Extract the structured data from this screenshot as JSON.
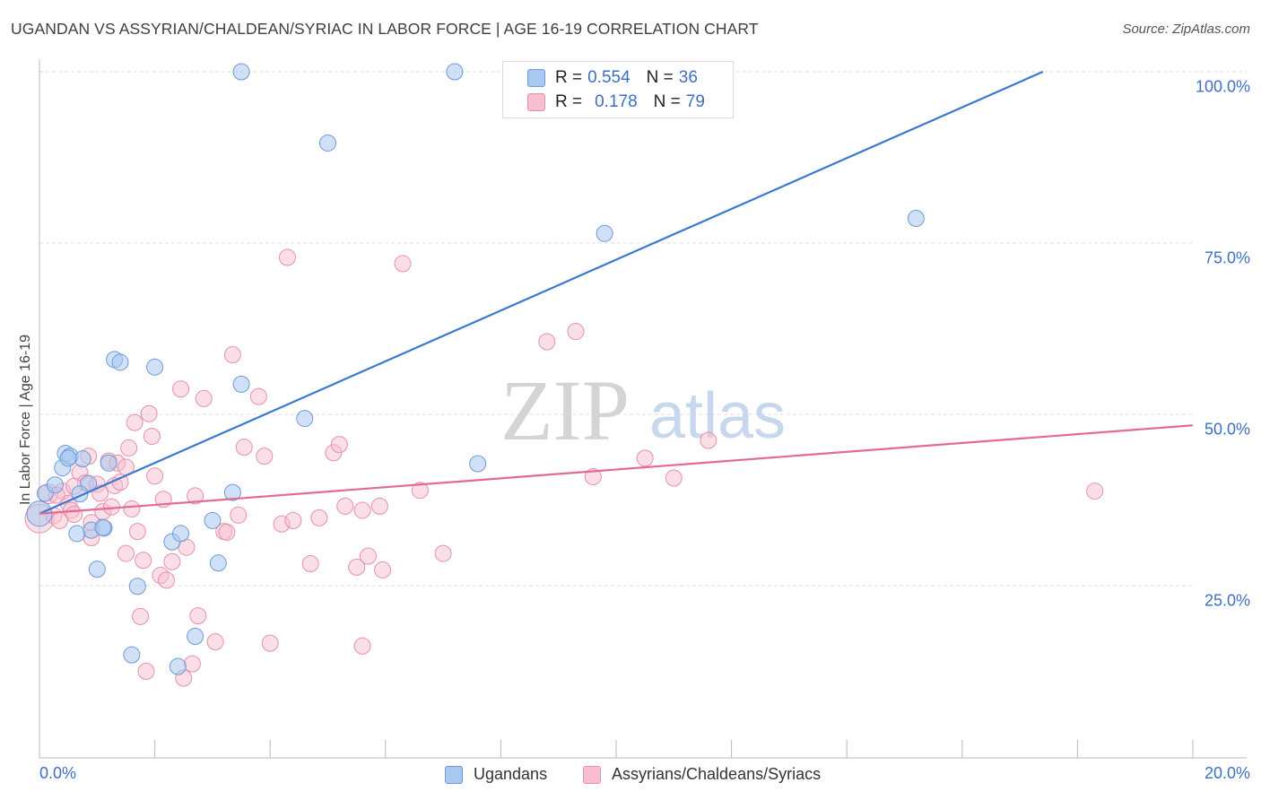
{
  "title": "UGANDAN VS ASSYRIAN/CHALDEAN/SYRIAC IN LABOR FORCE | AGE 16-19 CORRELATION CHART",
  "source": "Source: ZipAtlas.com",
  "watermark": {
    "zip": "ZIP",
    "atlas": "atlas"
  },
  "legend_top": {
    "rows": [
      {
        "r_label": "R = ",
        "r_value": "0.554",
        "n_label": "N = ",
        "n_value": "36"
      },
      {
        "r_label": "R = ",
        "r_value": "0.178",
        "n_label": "N = ",
        "n_value": "79"
      }
    ]
  },
  "legend_bottom": {
    "items": [
      "Ugandans",
      "Assyrians/Chaldeans/Syriacs"
    ]
  },
  "chart_data": {
    "type": "scatter",
    "title": "UGANDAN VS ASSYRIAN/CHALDEAN/SYRIAC IN LABOR FORCE | AGE 16-19 CORRELATION CHART",
    "xlabel": "",
    "ylabel": "In Labor Force | Age 16-19",
    "xlim": [
      0,
      20
    ],
    "ylim": [
      0,
      102
    ],
    "x_tick_labels": [
      "0.0%",
      "20.0%"
    ],
    "y_ticks": [
      25,
      50,
      75,
      100
    ],
    "y_tick_labels": [
      "25.0%",
      "50.0%",
      "75.0%",
      "100.0%"
    ],
    "grid": true,
    "legend_position": "top-center",
    "colors": {
      "ugandans_fill": "#a9c8f0",
      "ugandans_stroke": "#6d9ad8",
      "ugandans_line": "#3a78d0",
      "assyrians_fill": "#f6bfd0",
      "assyrians_stroke": "#e98fab",
      "assyrians_line": "#e36a93",
      "grid": "#dddddd",
      "axis": "#bbbbbb"
    },
    "series": [
      {
        "name": "Ugandans",
        "r": 0.554,
        "n": 36,
        "trend": {
          "x0": 0,
          "y0": 35.5,
          "x1": 17.4,
          "y1": 100
        },
        "points": [
          {
            "x": 0.0,
            "y": 35.5,
            "s": 14
          },
          {
            "x": 0.1,
            "y": 38.5,
            "s": 9
          },
          {
            "x": 0.27,
            "y": 39.7,
            "s": 9
          },
          {
            "x": 0.4,
            "y": 42.2,
            "s": 9
          },
          {
            "x": 0.45,
            "y": 44.3,
            "s": 9
          },
          {
            "x": 0.53,
            "y": 43.9,
            "s": 9
          },
          {
            "x": 0.75,
            "y": 43.5,
            "s": 9
          },
          {
            "x": 0.65,
            "y": 32.6,
            "s": 9
          },
          {
            "x": 0.85,
            "y": 39.9,
            "s": 9
          },
          {
            "x": 0.9,
            "y": 33.1,
            "s": 9
          },
          {
            "x": 1.0,
            "y": 27.4,
            "s": 9
          },
          {
            "x": 1.12,
            "y": 33.4,
            "s": 9
          },
          {
            "x": 1.2,
            "y": 42.9,
            "s": 9
          },
          {
            "x": 1.3,
            "y": 58.0,
            "s": 9
          },
          {
            "x": 1.4,
            "y": 57.6,
            "s": 9
          },
          {
            "x": 1.6,
            "y": 14.9,
            "s": 9
          },
          {
            "x": 1.7,
            "y": 24.9,
            "s": 9
          },
          {
            "x": 2.0,
            "y": 56.9,
            "s": 9
          },
          {
            "x": 2.3,
            "y": 31.4,
            "s": 9
          },
          {
            "x": 2.4,
            "y": 13.2,
            "s": 9
          },
          {
            "x": 2.45,
            "y": 32.6,
            "s": 9
          },
          {
            "x": 2.7,
            "y": 17.6,
            "s": 9
          },
          {
            "x": 3.0,
            "y": 34.5,
            "s": 9
          },
          {
            "x": 3.1,
            "y": 28.3,
            "s": 9
          },
          {
            "x": 3.35,
            "y": 38.6,
            "s": 9
          },
          {
            "x": 3.5,
            "y": 54.4,
            "s": 9
          },
          {
            "x": 3.5,
            "y": 100.0,
            "s": 9
          },
          {
            "x": 4.6,
            "y": 49.4,
            "s": 9
          },
          {
            "x": 5.0,
            "y": 89.6,
            "s": 9
          },
          {
            "x": 7.2,
            "y": 100.0,
            "s": 9
          },
          {
            "x": 7.6,
            "y": 42.8,
            "s": 9
          },
          {
            "x": 9.8,
            "y": 76.4,
            "s": 9
          },
          {
            "x": 15.2,
            "y": 78.6,
            "s": 9
          },
          {
            "x": 1.1,
            "y": 33.5,
            "s": 9
          },
          {
            "x": 0.7,
            "y": 38.4,
            "s": 9
          },
          {
            "x": 0.5,
            "y": 43.6,
            "s": 9
          }
        ]
      },
      {
        "name": "Assyrians/Chaldeans/Syriacs",
        "r": 0.178,
        "n": 79,
        "trend": {
          "x0": 0,
          "y0": 35.5,
          "x1": 20,
          "y1": 48.4
        },
        "points": [
          {
            "x": 0.0,
            "y": 34.8,
            "s": 16
          },
          {
            "x": 0.15,
            "y": 38.4,
            "s": 11
          },
          {
            "x": 0.25,
            "y": 35.2,
            "s": 9
          },
          {
            "x": 0.35,
            "y": 34.5,
            "s": 9
          },
          {
            "x": 0.4,
            "y": 38.8,
            "s": 9
          },
          {
            "x": 0.5,
            "y": 37.0,
            "s": 9
          },
          {
            "x": 0.55,
            "y": 36.0,
            "s": 9
          },
          {
            "x": 0.6,
            "y": 35.4,
            "s": 9
          },
          {
            "x": 0.7,
            "y": 41.5,
            "s": 9
          },
          {
            "x": 0.8,
            "y": 40.0,
            "s": 9
          },
          {
            "x": 0.85,
            "y": 43.9,
            "s": 9
          },
          {
            "x": 0.9,
            "y": 34.2,
            "s": 9
          },
          {
            "x": 0.9,
            "y": 32.0,
            "s": 9
          },
          {
            "x": 1.0,
            "y": 39.8,
            "s": 9
          },
          {
            "x": 1.05,
            "y": 38.5,
            "s": 9
          },
          {
            "x": 1.1,
            "y": 35.8,
            "s": 9
          },
          {
            "x": 1.2,
            "y": 43.2,
            "s": 9
          },
          {
            "x": 1.25,
            "y": 36.5,
            "s": 9
          },
          {
            "x": 1.3,
            "y": 39.6,
            "s": 9
          },
          {
            "x": 1.35,
            "y": 42.9,
            "s": 9
          },
          {
            "x": 1.5,
            "y": 42.3,
            "s": 9
          },
          {
            "x": 1.5,
            "y": 29.7,
            "s": 9
          },
          {
            "x": 1.55,
            "y": 45.1,
            "s": 9
          },
          {
            "x": 1.6,
            "y": 36.2,
            "s": 9
          },
          {
            "x": 1.65,
            "y": 48.8,
            "s": 9
          },
          {
            "x": 1.7,
            "y": 32.9,
            "s": 9
          },
          {
            "x": 1.75,
            "y": 20.5,
            "s": 9
          },
          {
            "x": 1.8,
            "y": 28.7,
            "s": 9
          },
          {
            "x": 1.85,
            "y": 12.5,
            "s": 9
          },
          {
            "x": 1.9,
            "y": 50.1,
            "s": 9
          },
          {
            "x": 1.95,
            "y": 46.8,
            "s": 9
          },
          {
            "x": 2.1,
            "y": 26.5,
            "s": 9
          },
          {
            "x": 2.15,
            "y": 37.6,
            "s": 9
          },
          {
            "x": 2.2,
            "y": 25.8,
            "s": 9
          },
          {
            "x": 2.3,
            "y": 28.5,
            "s": 9
          },
          {
            "x": 2.45,
            "y": 53.7,
            "s": 9
          },
          {
            "x": 2.5,
            "y": 11.5,
            "s": 9
          },
          {
            "x": 2.55,
            "y": 30.6,
            "s": 9
          },
          {
            "x": 2.65,
            "y": 13.6,
            "s": 9
          },
          {
            "x": 2.7,
            "y": 38.1,
            "s": 9
          },
          {
            "x": 2.75,
            "y": 20.6,
            "s": 9
          },
          {
            "x": 2.85,
            "y": 52.3,
            "s": 9
          },
          {
            "x": 3.05,
            "y": 16.8,
            "s": 9
          },
          {
            "x": 3.2,
            "y": 32.9,
            "s": 9
          },
          {
            "x": 3.25,
            "y": 32.8,
            "s": 9
          },
          {
            "x": 3.35,
            "y": 58.7,
            "s": 9
          },
          {
            "x": 3.45,
            "y": 35.3,
            "s": 9
          },
          {
            "x": 3.55,
            "y": 45.2,
            "s": 9
          },
          {
            "x": 3.8,
            "y": 52.6,
            "s": 9
          },
          {
            "x": 3.9,
            "y": 43.9,
            "s": 9
          },
          {
            "x": 4.0,
            "y": 16.6,
            "s": 9
          },
          {
            "x": 4.2,
            "y": 34.0,
            "s": 9
          },
          {
            "x": 4.3,
            "y": 72.9,
            "s": 9
          },
          {
            "x": 4.4,
            "y": 34.5,
            "s": 9
          },
          {
            "x": 4.7,
            "y": 28.2,
            "s": 9
          },
          {
            "x": 4.85,
            "y": 34.9,
            "s": 9
          },
          {
            "x": 5.1,
            "y": 44.4,
            "s": 9
          },
          {
            "x": 5.2,
            "y": 45.6,
            "s": 9
          },
          {
            "x": 5.3,
            "y": 36.6,
            "s": 9
          },
          {
            "x": 5.5,
            "y": 27.7,
            "s": 9
          },
          {
            "x": 5.6,
            "y": 36.0,
            "s": 9
          },
          {
            "x": 5.6,
            "y": 16.2,
            "s": 9
          },
          {
            "x": 5.7,
            "y": 29.3,
            "s": 9
          },
          {
            "x": 5.9,
            "y": 36.6,
            "s": 9
          },
          {
            "x": 5.95,
            "y": 27.3,
            "s": 9
          },
          {
            "x": 6.3,
            "y": 72.0,
            "s": 9
          },
          {
            "x": 6.6,
            "y": 38.9,
            "s": 9
          },
          {
            "x": 7.0,
            "y": 29.7,
            "s": 9
          },
          {
            "x": 8.8,
            "y": 60.6,
            "s": 9
          },
          {
            "x": 9.3,
            "y": 62.1,
            "s": 9
          },
          {
            "x": 9.6,
            "y": 40.9,
            "s": 9
          },
          {
            "x": 10.5,
            "y": 43.6,
            "s": 9
          },
          {
            "x": 11.0,
            "y": 40.7,
            "s": 9
          },
          {
            "x": 11.6,
            "y": 46.2,
            "s": 9
          },
          {
            "x": 18.3,
            "y": 38.8,
            "s": 9
          },
          {
            "x": 0.3,
            "y": 38.2,
            "s": 9
          },
          {
            "x": 0.6,
            "y": 39.5,
            "s": 9
          },
          {
            "x": 1.4,
            "y": 40.1,
            "s": 9
          },
          {
            "x": 2.0,
            "y": 41.0,
            "s": 9
          }
        ]
      }
    ]
  }
}
